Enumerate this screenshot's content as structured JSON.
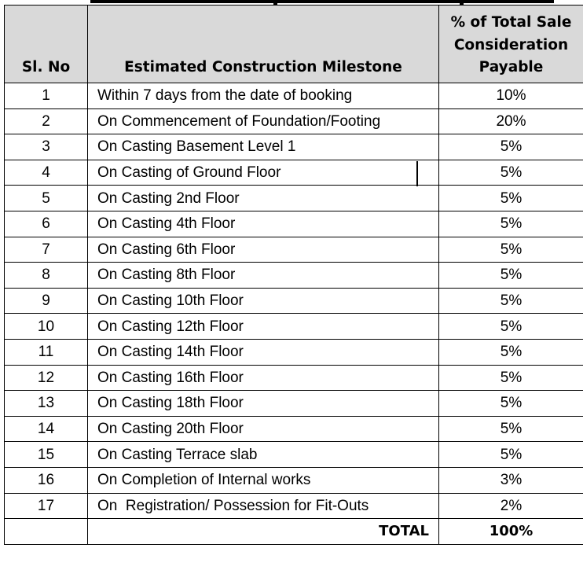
{
  "header": {
    "sl_no": "Sl. No",
    "milestone": "Estimated Construction Milestone",
    "percent_line1": "% of Total Sale",
    "percent_line2": "Consideration",
    "percent_line3": "Payable"
  },
  "rows": [
    {
      "no": "1",
      "milestone": "Within 7 days from the date of booking",
      "percent": "10%"
    },
    {
      "no": "2",
      "milestone": "On Commencement of Foundation/Footing",
      "percent": "20%"
    },
    {
      "no": "3",
      "milestone": "On Casting Basement Level 1",
      "percent": "5%"
    },
    {
      "no": "4",
      "milestone": "On Casting of Ground Floor",
      "percent": "5%"
    },
    {
      "no": "5",
      "milestone": "On Casting 2nd Floor",
      "percent": "5%"
    },
    {
      "no": "6",
      "milestone": "On Casting 4th Floor",
      "percent": "5%"
    },
    {
      "no": "7",
      "milestone": "On Casting 6th Floor",
      "percent": "5%"
    },
    {
      "no": "8",
      "milestone": "On Casting 8th Floor",
      "percent": "5%"
    },
    {
      "no": "9",
      "milestone": "On Casting 10th Floor",
      "percent": "5%"
    },
    {
      "no": "10",
      "milestone": "On Casting 12th Floor",
      "percent": "5%"
    },
    {
      "no": "11",
      "milestone": "On Casting 14th Floor",
      "percent": "5%"
    },
    {
      "no": "12",
      "milestone": "On Casting 16th Floor",
      "percent": "5%"
    },
    {
      "no": "13",
      "milestone": "On Casting 18th Floor",
      "percent": "5%"
    },
    {
      "no": "14",
      "milestone": "On Casting 20th Floor",
      "percent": "5%"
    },
    {
      "no": "15",
      "milestone": "On Casting Terrace slab",
      "percent": "5%"
    },
    {
      "no": "16",
      "milestone": "On Completion of Internal works",
      "percent": "3%"
    },
    {
      "no": "17",
      "milestone": "On  Registration/ Possession for Fit-Outs",
      "percent": "2%"
    }
  ],
  "total": {
    "label": "TOTAL",
    "value": "100%"
  }
}
